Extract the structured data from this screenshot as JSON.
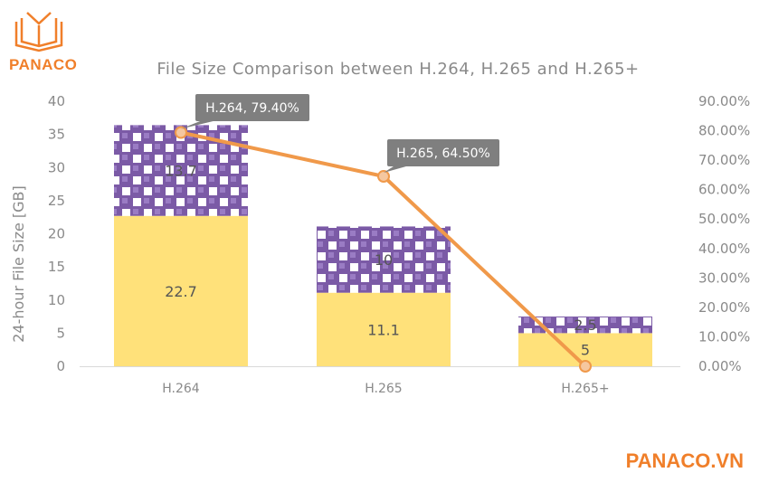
{
  "brand": {
    "logo_text": "PANACO",
    "footer_text": "PANACO.VN",
    "color": "#f07f2a"
  },
  "chart_data": {
    "type": "bar",
    "title": "File Size Comparison between H.264, H.265 and H.265+",
    "categories": [
      "H.264",
      "H.265",
      "H.265+"
    ],
    "ylabel": "24-hour File Size [GB]",
    "ylim": [
      0,
      40
    ],
    "yticks": [
      "0",
      "5",
      "10",
      "15",
      "20",
      "25",
      "30",
      "35",
      "40"
    ],
    "y2lim": [
      0,
      90
    ],
    "y2ticks": [
      "0.00%",
      "10.00%",
      "20.00%",
      "30.00%",
      "40.00%",
      "50.00%",
      "60.00%",
      "70.00%",
      "80.00%",
      "90.00%"
    ],
    "stacked": true,
    "series": [
      {
        "name": "base",
        "values": [
          22.7,
          11.1,
          5
        ],
        "labels": [
          "22.7",
          "11.1",
          "5"
        ],
        "color": "#ffe17a"
      },
      {
        "name": "top",
        "values": [
          13.7,
          10,
          2.5
        ],
        "labels": [
          "13.7",
          "10",
          "2.5"
        ],
        "color": "#7b5aa6",
        "pattern": "checker"
      }
    ],
    "line": {
      "name": "saving",
      "axis": "right",
      "values": [
        79.4,
        64.5,
        0
      ],
      "color": "#f0994a",
      "callouts": [
        "H.264, 79.40%",
        "H.265, 64.50%"
      ]
    }
  }
}
